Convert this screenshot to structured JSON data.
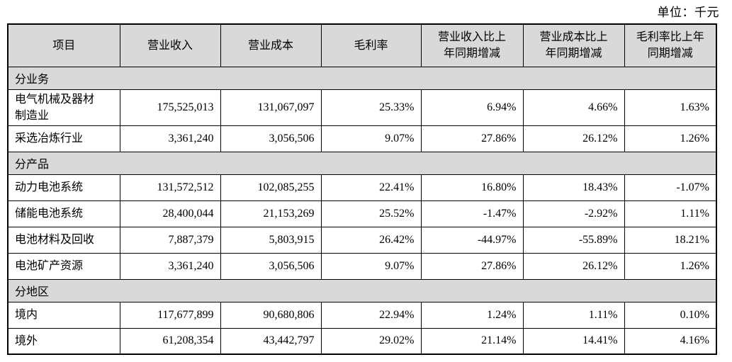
{
  "unit_label": "单位：千元",
  "table": {
    "columns": [
      "项目",
      "营业收入",
      "营业成本",
      "毛利率",
      "营业收入比上\n年同期增减",
      "营业成本比上\n年同期增减",
      "毛利率比上年\n同期增减"
    ],
    "rows": [
      {
        "type": "section",
        "label": "分业务"
      },
      {
        "type": "data",
        "label": "电气机械及器材\n制造业",
        "values": [
          "175,525,013",
          "131,067,097",
          "25.33%",
          "6.94%",
          "4.66%",
          "1.63%"
        ]
      },
      {
        "type": "data",
        "label": "采选冶炼行业",
        "values": [
          "3,361,240",
          "3,056,506",
          "9.07%",
          "27.86%",
          "26.12%",
          "1.26%"
        ]
      },
      {
        "type": "section",
        "label": "分产品"
      },
      {
        "type": "data",
        "label": "动力电池系统",
        "values": [
          "131,572,512",
          "102,085,255",
          "22.41%",
          "16.80%",
          "18.43%",
          "-1.07%"
        ]
      },
      {
        "type": "data",
        "label": "储能电池系统",
        "values": [
          "28,400,044",
          "21,153,269",
          "25.52%",
          "-1.47%",
          "-2.92%",
          "1.11%"
        ]
      },
      {
        "type": "data",
        "label": "电池材料及回收",
        "values": [
          "7,887,379",
          "5,803,915",
          "26.42%",
          "-44.97%",
          "-55.89%",
          "18.21%"
        ]
      },
      {
        "type": "data",
        "label": "电池矿产资源",
        "values": [
          "3,361,240",
          "3,056,506",
          "9.07%",
          "27.86%",
          "26.12%",
          "1.26%"
        ]
      },
      {
        "type": "section",
        "label": "分地区"
      },
      {
        "type": "data",
        "label": "境内",
        "values": [
          "117,677,899",
          "90,680,806",
          "22.94%",
          "1.24%",
          "1.11%",
          "0.10%"
        ]
      },
      {
        "type": "data",
        "label": "境外",
        "values": [
          "61,208,354",
          "43,442,797",
          "29.02%",
          "21.14%",
          "14.41%",
          "4.16%"
        ]
      }
    ]
  },
  "colors": {
    "header_bg": "#d9d9d9",
    "section_bg": "#d9d9d9",
    "border": "#000000"
  }
}
